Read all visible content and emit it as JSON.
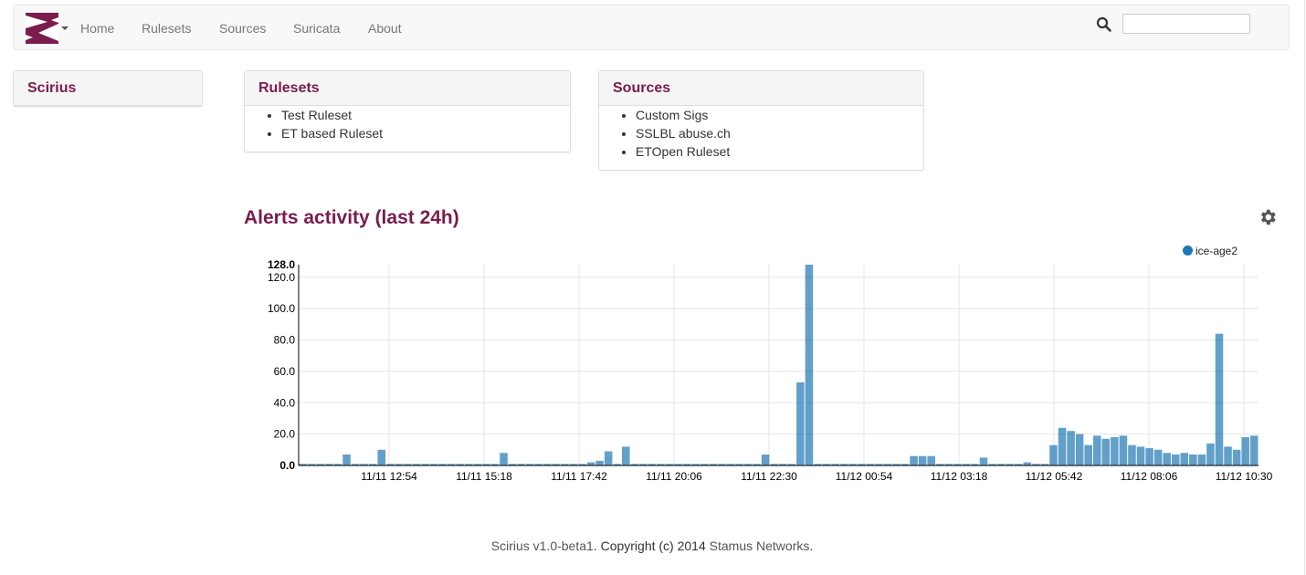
{
  "navbar": {
    "items": [
      {
        "label": "Home"
      },
      {
        "label": "Rulesets"
      },
      {
        "label": "Sources"
      },
      {
        "label": "Suricata"
      },
      {
        "label": "About"
      }
    ],
    "search": {
      "value": "",
      "placeholder": ""
    },
    "logo_color": "#7a1c4e"
  },
  "sidebar": {
    "title": "Scirius"
  },
  "rulesets_panel": {
    "title": "Rulesets",
    "items": [
      "Test Ruleset",
      "ET based Ruleset"
    ]
  },
  "sources_panel": {
    "title": "Sources",
    "items": [
      "Custom Sigs",
      "SSLBL abuse.ch",
      "ETOpen Ruleset"
    ]
  },
  "activity": {
    "title": "Alerts activity (last 24h)",
    "settings_icon": "gear-icon"
  },
  "chart_data": {
    "type": "bar",
    "series": [
      {
        "name": "ice-age2",
        "color": "#1f77b4",
        "values": [
          1,
          1,
          1,
          1,
          1,
          7,
          1,
          1,
          1,
          10,
          1,
          1,
          1,
          1,
          1,
          1,
          1,
          1,
          1,
          1,
          1,
          1,
          1,
          8,
          1,
          1,
          1,
          1,
          1,
          1,
          1,
          1,
          1,
          2,
          3,
          9,
          1,
          12,
          1,
          1,
          1,
          1,
          1,
          1,
          1,
          1,
          1,
          1,
          1,
          1,
          1,
          1,
          1,
          7,
          1,
          1,
          1,
          53,
          128,
          1,
          1,
          1,
          1,
          1,
          1,
          1,
          1,
          1,
          1,
          1,
          6,
          6,
          6,
          1,
          1,
          1,
          1,
          1,
          5,
          1,
          1,
          1,
          1,
          2,
          1,
          1,
          13,
          24,
          22,
          20,
          13,
          19,
          17,
          18,
          19,
          13,
          12,
          11,
          10,
          8,
          7,
          8,
          7,
          7,
          14,
          84,
          12,
          10,
          18,
          19
        ]
      }
    ],
    "x_tick_labels": [
      "11/11 12:54",
      "11/11 15:18",
      "11/11 17:42",
      "11/11 20:06",
      "11/11 22:30",
      "11/12 00:54",
      "11/12 03:18",
      "11/12 05:42",
      "11/12 08:06",
      "11/12 10:30"
    ],
    "y_tick_labels": [
      "0.0",
      "20.0",
      "40.0",
      "60.0",
      "80.0",
      "100.0",
      "120.0"
    ],
    "y_max_label": "128.0",
    "ylim": [
      0,
      128
    ],
    "grid": true,
    "legend_position": "top-right"
  },
  "footer": {
    "version": "Scirius v1.0-beta1",
    "copyright": ". Copyright (c) 2014 ",
    "company": "Stamus Networks",
    "end": "."
  }
}
